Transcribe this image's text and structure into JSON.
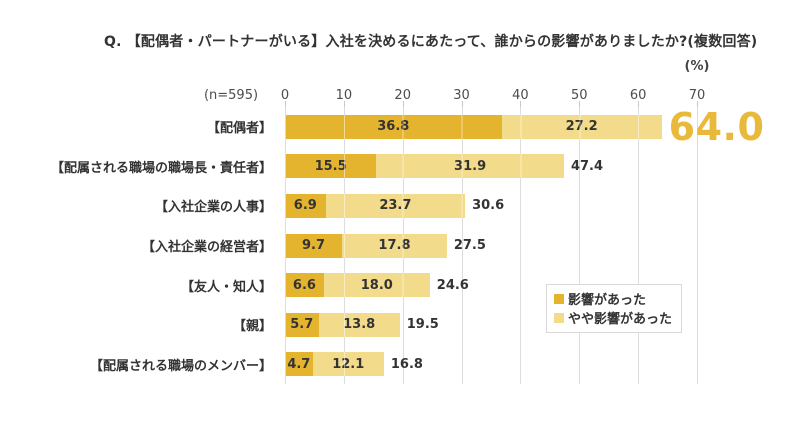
{
  "header": {
    "title": "Q. 【配偶者・パートナーがいる】入社を決めるにあたって、誰からの影響がありましたか?(複数回答)",
    "unit_label": "(%)",
    "sample_label": "(n=595)"
  },
  "colors": {
    "primary": "#E5B42F",
    "secondary": "#F3DB8C",
    "emphasis_total": "#E8B93B",
    "text": "#333333",
    "gridline": "#DDDDDD"
  },
  "legend": {
    "items": [
      {
        "label": "影響があった",
        "color": "#E5B42F"
      },
      {
        "label": "やや影響があった",
        "color": "#F3DB8C"
      }
    ]
  },
  "chart_data": {
    "type": "bar",
    "orientation": "horizontal",
    "stacked": true,
    "title": "Q. 【配偶者・パートナーがいる】入社を決めるにあたって、誰からの影響がありましたか?(複数回答)",
    "sample_size": "(n=595)",
    "unit": "%",
    "xlim": [
      0,
      70
    ],
    "x_ticks": [
      "0",
      "10",
      "20",
      "30",
      "40",
      "50",
      "60",
      "70"
    ],
    "grid": true,
    "legend_position": "right-middle",
    "categories": [
      "【配偶者】",
      "【配属される職場の職場長・責任者】",
      "【入社企業の人事】",
      "【入社企業の経営者】",
      "【友人・知人】",
      "【親】",
      "【配属される職場のメンバー】"
    ],
    "series": [
      {
        "name": "影響があった",
        "color": "#E5B42F",
        "values": [
          36.8,
          15.5,
          6.9,
          9.7,
          6.6,
          5.7,
          4.7
        ],
        "labels": [
          "36.8",
          "15.5",
          "6.9",
          "9.7",
          "6.6",
          "5.7",
          "4.7"
        ]
      },
      {
        "name": "やや影響があった",
        "color": "#F3DB8C",
        "values": [
          27.2,
          31.9,
          23.7,
          17.8,
          18.0,
          13.8,
          12.1
        ],
        "labels": [
          "27.2",
          "31.9",
          "23.7",
          "17.8",
          "18.0",
          "13.8",
          "12.1"
        ]
      }
    ],
    "totals": [
      64.0,
      47.4,
      30.6,
      27.5,
      24.6,
      19.5,
      16.8
    ],
    "total_labels": [
      "64.0",
      "47.4",
      "30.6",
      "27.5",
      "24.6",
      "19.5",
      "16.8"
    ],
    "emphasis": {
      "category_index": 0,
      "total_label": "64.0"
    }
  }
}
